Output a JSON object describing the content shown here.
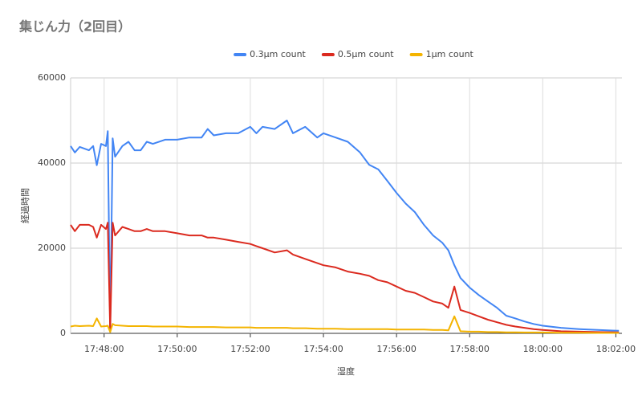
{
  "chart_data": {
    "type": "line",
    "title": "集じん力（2回目）",
    "x_label": "湿度",
    "y_label": "経過時間",
    "x": [
      "17:47:05",
      "17:47:12",
      "17:47:20",
      "17:47:35",
      "17:47:42",
      "17:47:48",
      "17:47:55",
      "17:48:03",
      "17:48:06",
      "17:48:10",
      "17:48:14",
      "17:48:18",
      "17:48:30",
      "17:48:40",
      "17:48:50",
      "17:49:00",
      "17:49:10",
      "17:49:20",
      "17:49:40",
      "17:50:00",
      "17:50:20",
      "17:50:40",
      "17:50:50",
      "17:51:00",
      "17:51:20",
      "17:51:40",
      "17:52:00",
      "17:52:10",
      "17:52:20",
      "17:52:40",
      "17:53:00",
      "17:53:10",
      "17:53:30",
      "17:53:50",
      "17:54:00",
      "17:54:20",
      "17:54:40",
      "17:55:00",
      "17:55:15",
      "17:55:30",
      "17:55:45",
      "17:56:00",
      "17:56:15",
      "17:56:30",
      "17:56:45",
      "17:57:00",
      "17:57:15",
      "17:57:25",
      "17:57:35",
      "17:57:45",
      "17:58:00",
      "17:58:15",
      "17:58:30",
      "17:58:45",
      "17:59:00",
      "17:59:15",
      "17:59:30",
      "17:59:45",
      "18:00:00",
      "18:00:30",
      "18:01:00",
      "18:01:30",
      "18:02:05"
    ],
    "series": [
      {
        "name": "0.3μm count",
        "color": "#4285f4",
        "values": [
          44000,
          42500,
          43800,
          43000,
          44000,
          39500,
          44500,
          44000,
          47500,
          500,
          45800,
          41500,
          44000,
          45000,
          43000,
          43000,
          45000,
          44500,
          45500,
          45500,
          46000,
          46000,
          48000,
          46500,
          47000,
          47000,
          48500,
          47000,
          48500,
          48000,
          50000,
          47000,
          48500,
          46000,
          47000,
          46000,
          45000,
          42500,
          39600,
          38500,
          35800,
          33000,
          30500,
          28500,
          25500,
          23000,
          21300,
          19500,
          16000,
          13000,
          10750,
          9000,
          7500,
          6000,
          4150,
          3500,
          2800,
          2200,
          1800,
          1300,
          1000,
          800,
          600
        ]
      },
      {
        "name": "0.5μm count",
        "color": "#db2a1f",
        "values": [
          25500,
          24000,
          25500,
          25500,
          25000,
          22500,
          25500,
          24500,
          26000,
          500,
          26000,
          23000,
          25000,
          24500,
          24000,
          24000,
          24500,
          24000,
          24000,
          23500,
          23000,
          23000,
          22500,
          22500,
          22000,
          21500,
          21000,
          20500,
          20000,
          19000,
          19500,
          18500,
          17500,
          16500,
          16000,
          15500,
          14500,
          14000,
          13500,
          12500,
          12000,
          11000,
          10000,
          9500,
          8500,
          7500,
          7000,
          6000,
          11000,
          5500,
          4800,
          4000,
          3200,
          2600,
          2000,
          1600,
          1300,
          1000,
          800,
          500,
          400,
          300,
          250
        ]
      },
      {
        "name": "1μm count",
        "color": "#f4b400",
        "values": [
          1600,
          1800,
          1700,
          1800,
          1700,
          3500,
          1600,
          1700,
          1800,
          300,
          2200,
          1900,
          1800,
          1700,
          1700,
          1700,
          1700,
          1600,
          1600,
          1600,
          1500,
          1500,
          1500,
          1500,
          1400,
          1400,
          1400,
          1300,
          1300,
          1300,
          1300,
          1200,
          1200,
          1100,
          1100,
          1100,
          1000,
          1000,
          1000,
          1000,
          1000,
          900,
          900,
          900,
          900,
          800,
          800,
          700,
          4000,
          500,
          400,
          400,
          300,
          300,
          250,
          250,
          200,
          200,
          200,
          150,
          150,
          100,
          100
        ]
      }
    ],
    "xlim": [
      "17:47:05",
      "18:02:10"
    ],
    "xticks": [
      "17:48:00",
      "17:50:00",
      "17:52:00",
      "17:54:00",
      "17:56:00",
      "17:58:00",
      "18:00:00",
      "18:02:00"
    ],
    "ylim": [
      0,
      60000
    ],
    "yticks": [
      0,
      20000,
      40000,
      60000
    ],
    "grid": true,
    "legend": "top"
  }
}
